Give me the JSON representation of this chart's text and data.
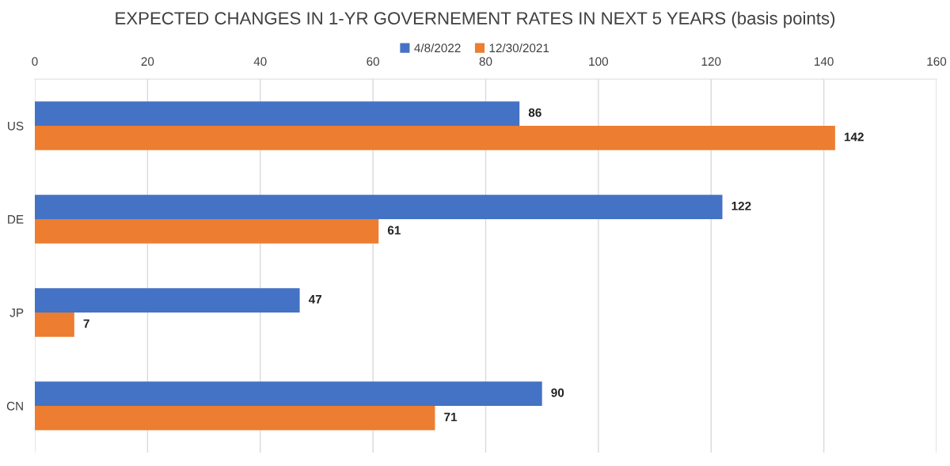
{
  "chart_data": {
    "type": "bar",
    "orientation": "horizontal",
    "title": "EXPECTED CHANGES IN 1-YR GOVERNEMENT RATES IN NEXT 5 YEARS (basis points)",
    "categories": [
      "US",
      "DE",
      "JP",
      "CN"
    ],
    "series": [
      {
        "name": "4/8/2022",
        "color": "#4472c4",
        "values": [
          86,
          122,
          47,
          90
        ]
      },
      {
        "name": "12/30/2021",
        "color": "#ed7d31",
        "values": [
          142,
          61,
          7,
          71
        ]
      }
    ],
    "xlim": [
      0,
      160
    ],
    "xticks": [
      0,
      20,
      40,
      60,
      80,
      100,
      120,
      140,
      160
    ],
    "grid": "x",
    "legend": "top",
    "data_labels": true
  }
}
